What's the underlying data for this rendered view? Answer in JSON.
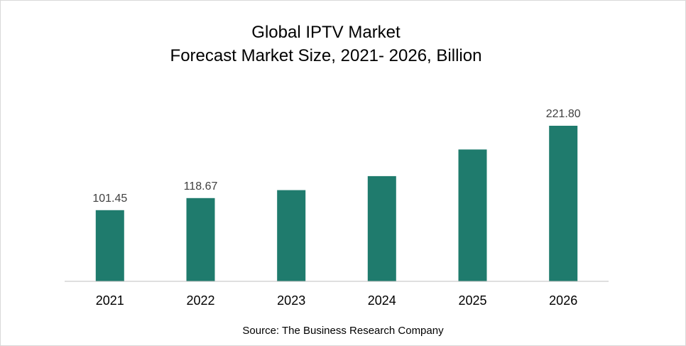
{
  "colors": {
    "bar": "#1f7b6d",
    "axis": "#bfbfbf"
  },
  "chart_data": {
    "type": "bar",
    "title": "Global IPTV Market",
    "subtitle": "Forecast Market Size, 2021- 2026, Billion",
    "categories": [
      "2021",
      "2022",
      "2023",
      "2024",
      "2025",
      "2026"
    ],
    "values": [
      101.45,
      118.67,
      130.0,
      150.0,
      188.0,
      221.8
    ],
    "data_labels": [
      "101.45",
      "118.67",
      null,
      null,
      null,
      "221.80"
    ],
    "ylim": [
      0,
      230
    ],
    "grid": false,
    "source": "Source: The Business Research Company"
  }
}
